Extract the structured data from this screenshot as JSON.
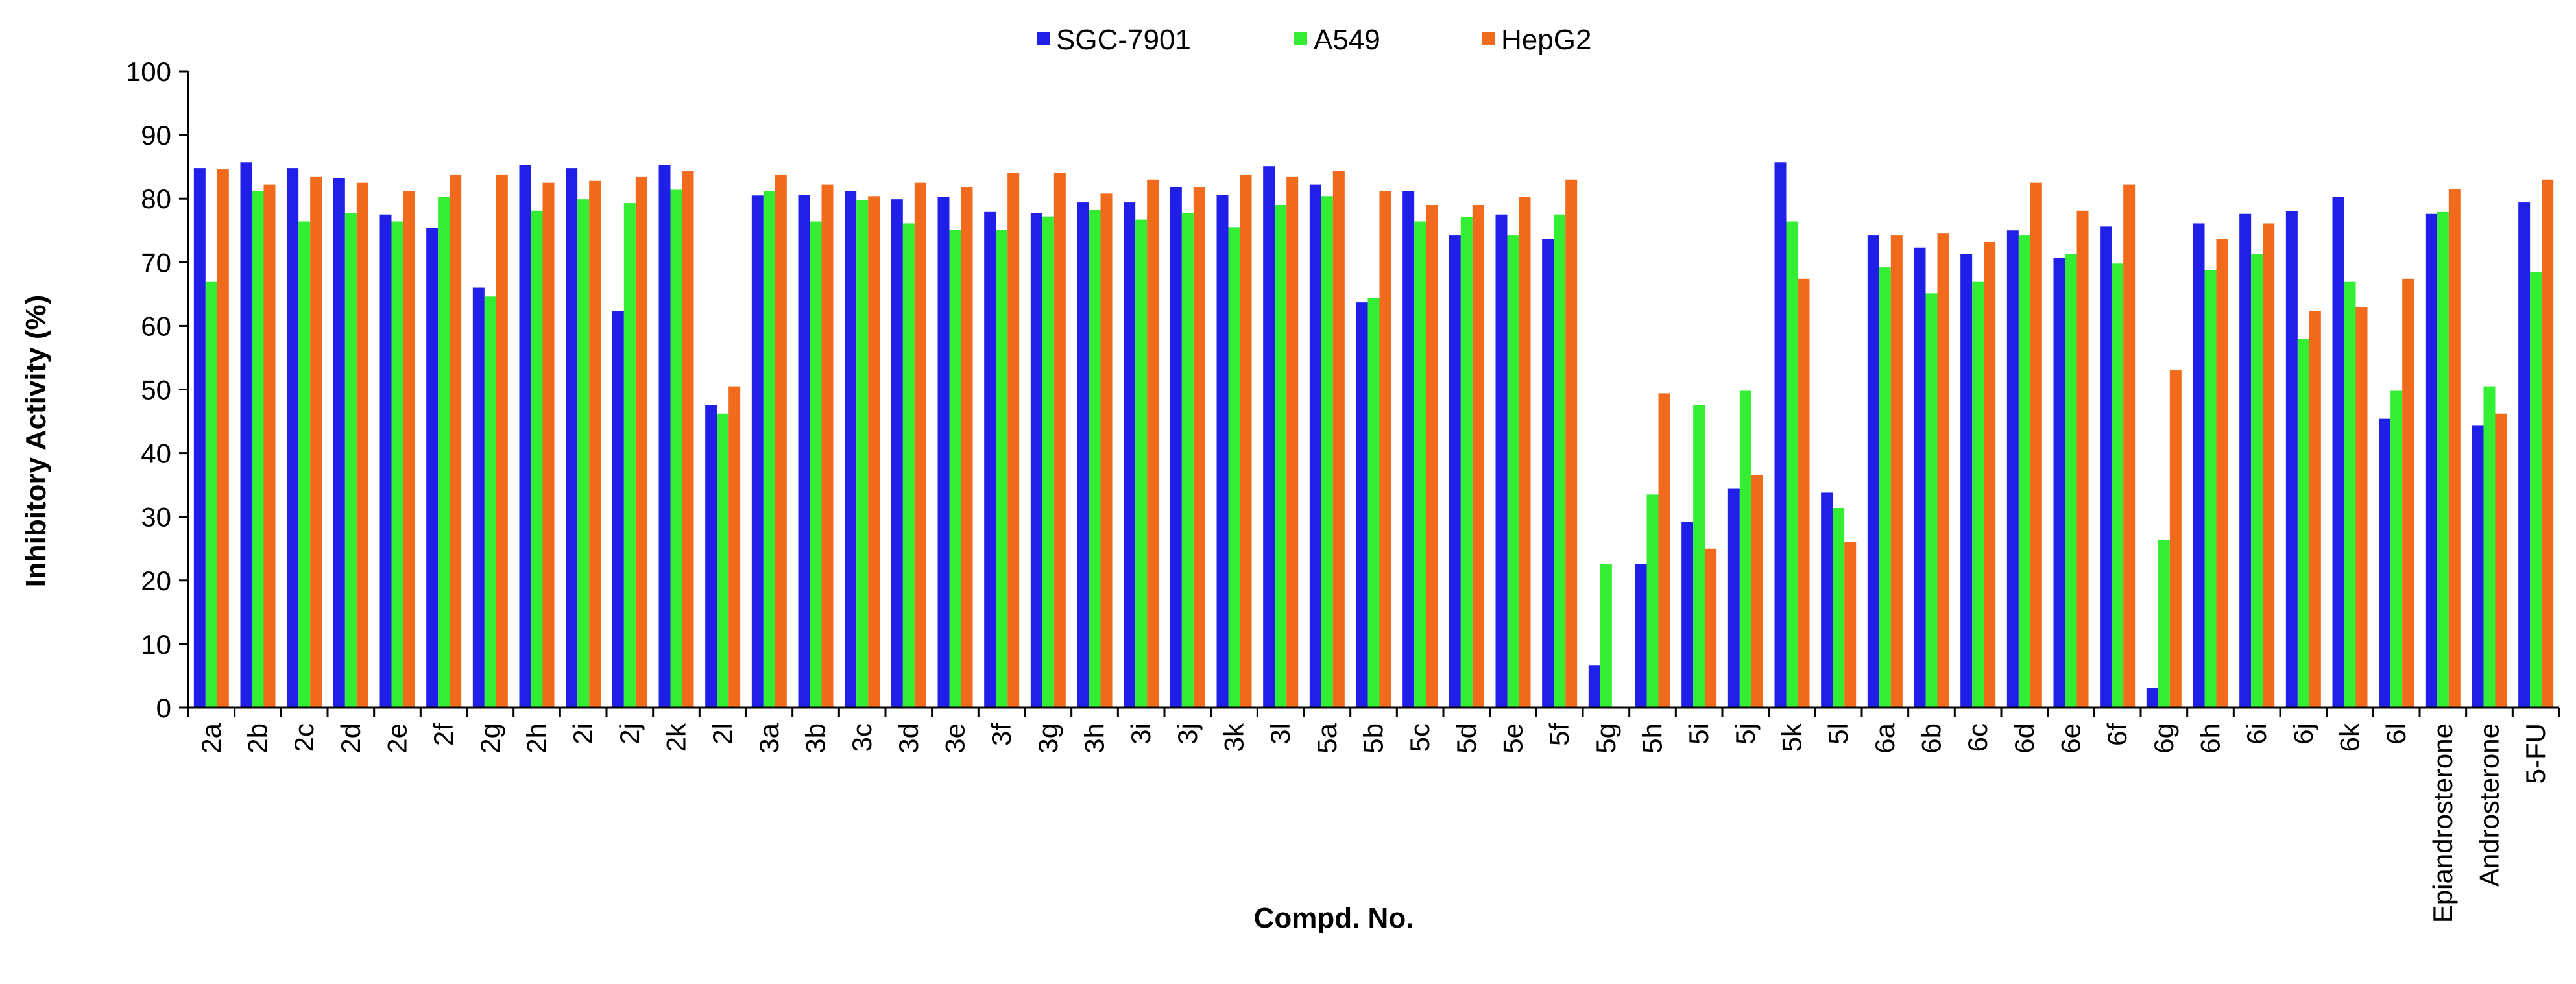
{
  "chart_data": {
    "type": "bar",
    "title": "",
    "xlabel": "Compd. No.",
    "ylabel": "Inhibitory Activity (%)",
    "ylim": [
      0,
      100
    ],
    "yticks": [
      "0",
      "10",
      "20",
      "30",
      "40",
      "50",
      "60",
      "70",
      "80",
      "90",
      "100"
    ],
    "grid": false,
    "legend_position": "top-center",
    "categories": [
      "2a",
      "2b",
      "2c",
      "2d",
      "2e",
      "2f",
      "2g",
      "2h",
      "2i",
      "2j",
      "2k",
      "2l",
      "3a",
      "3b",
      "3c",
      "3d",
      "3e",
      "3f",
      "3g",
      "3h",
      "3i",
      "3j",
      "3k",
      "3l",
      "5a",
      "5b",
      "5c",
      "5d",
      "5e",
      "5f",
      "5g",
      "5h",
      "5i",
      "5j",
      "5k",
      "5l",
      "6a",
      "6b",
      "6c",
      "6d",
      "6e",
      "6f",
      "6g",
      "6h",
      "6i",
      "6j",
      "6k",
      "6l",
      "Epiandrosterone",
      "Androsterone",
      "5-FU"
    ],
    "series": [
      {
        "name": "SGC-7901",
        "color": "#1f1fe8",
        "values": [
          84.8,
          85.7,
          84.8,
          83.2,
          77.5,
          75.4,
          66,
          85.3,
          84.8,
          62.3,
          85.3,
          47.6,
          80.5,
          80.6,
          81.2,
          79.9,
          80.3,
          77.9,
          77.7,
          79.4,
          79.4,
          81.8,
          80.6,
          85.1,
          82.2,
          63.7,
          81.2,
          74.2,
          77.5,
          73.6,
          6.7,
          22.6,
          29.2,
          34.4,
          85.7,
          33.8,
          74.2,
          72.3,
          71.3,
          75,
          70.7,
          75.6,
          3.1,
          76.1,
          77.6,
          78,
          80.3,
          45.4,
          77.6,
          44.4,
          79.4
        ]
      },
      {
        "name": "A549",
        "color": "#33ee33",
        "values": [
          67,
          81.2,
          76.4,
          77.7,
          76.4,
          80.3,
          64.6,
          78.1,
          79.9,
          79.3,
          81.4,
          46.2,
          81.2,
          76.4,
          79.8,
          76.1,
          75.1,
          75.1,
          77.2,
          78.2,
          76.7,
          77.7,
          75.5,
          79,
          80.4,
          64.4,
          76.4,
          77.1,
          74.2,
          77.5,
          22.6,
          33.5,
          47.6,
          49.8,
          76.4,
          31.4,
          69.2,
          65.1,
          67,
          74.2,
          71.3,
          69.8,
          26.3,
          68.8,
          71.3,
          58,
          67,
          49.8,
          77.9,
          50.5,
          68.5
        ]
      },
      {
        "name": "HepG2",
        "color": "#f26b1d",
        "values": [
          84.6,
          82.2,
          83.4,
          82.5,
          81.2,
          83.7,
          83.7,
          82.5,
          82.8,
          83.4,
          84.3,
          50.5,
          83.7,
          82.2,
          80.4,
          82.5,
          81.8,
          84,
          84,
          80.8,
          83,
          81.8,
          83.7,
          83.4,
          84.3,
          81.2,
          79,
          79,
          80.3,
          83,
          0,
          49.4,
          25,
          36.5,
          67.4,
          26,
          74.2,
          74.6,
          73.2,
          82.5,
          78.1,
          82.2,
          53,
          73.7,
          76.1,
          62.3,
          63,
          67.4,
          81.5,
          46.2,
          83
        ]
      }
    ]
  }
}
